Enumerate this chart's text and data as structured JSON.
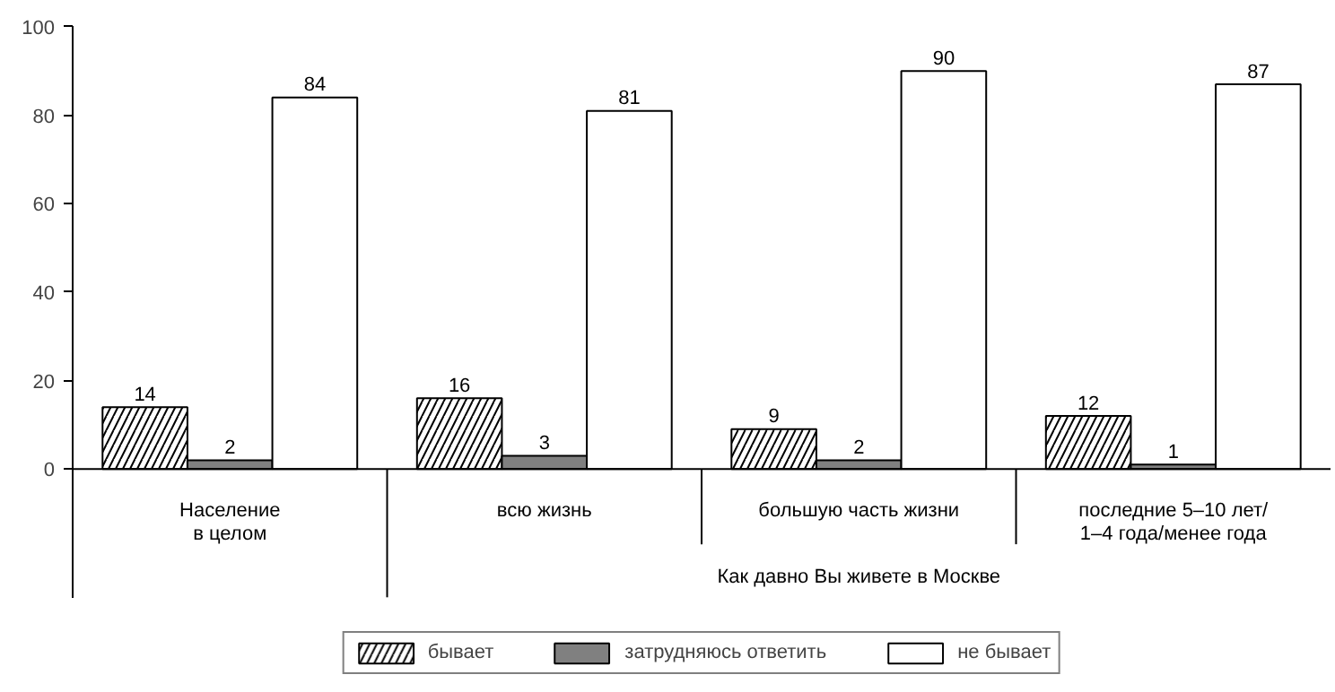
{
  "chart_data": {
    "type": "bar",
    "categories": [
      "Население\nв целом",
      "всю жизнь",
      "большую часть жизни",
      "последние 5–10 лет/\n1–4 года/менее года"
    ],
    "series": [
      {
        "name": "бывает",
        "color": "#ffffff",
        "values": [
          14,
          16,
          9,
          12
        ]
      },
      {
        "name": "затрудняюсь ответить",
        "color": "#808080",
        "values": [
          2,
          3,
          2,
          1
        ]
      },
      {
        "name": "не бывает",
        "color": "#ffffff",
        "values": [
          84,
          81,
          90,
          87
        ]
      }
    ],
    "annotations": [
      "Как давно Вы живете в Москве"
    ],
    "ylim": [
      0,
      100
    ],
    "yticks": [
      0,
      20,
      40,
      60,
      80,
      100
    ],
    "data_labels": true,
    "grid": false,
    "legend": "bottom"
  }
}
